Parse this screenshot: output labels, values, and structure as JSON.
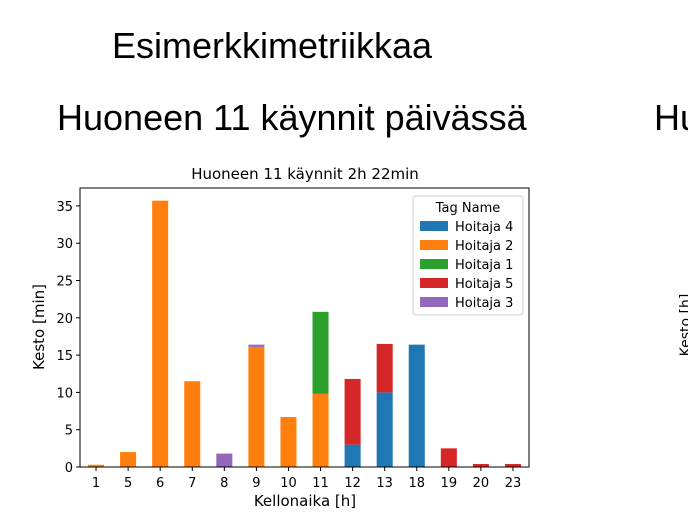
{
  "slide": {
    "title": "Esimerkkimetriikkaa",
    "subtitle": "Huoneen 11 käynnit päivässä",
    "next_panel_title": "Hu",
    "next_panel_ylabel": "Kesto [h]"
  },
  "chart_data": {
    "type": "stacked_bar",
    "title": "Huoneen 11 käynnit 2h 22min",
    "x_label": "Kellonaika [h]",
    "y_label": "Kesto [min]",
    "categories": [
      "1",
      "5",
      "6",
      "7",
      "8",
      "9",
      "10",
      "11",
      "12",
      "13",
      "18",
      "19",
      "20",
      "23"
    ],
    "series": [
      {
        "name": "Hoitaja 4",
        "color": "#1f77b4",
        "values": [
          null,
          null,
          null,
          null,
          null,
          null,
          null,
          null,
          3.0,
          10.0,
          16.4,
          null,
          null,
          null
        ]
      },
      {
        "name": "Hoitaja 2",
        "color": "#ff7f0e",
        "values": [
          0.3,
          2.0,
          35.7,
          11.5,
          null,
          16.1,
          6.7,
          9.8,
          null,
          null,
          null,
          null,
          null,
          null
        ]
      },
      {
        "name": "Hoitaja 1",
        "color": "#2ca02c",
        "values": [
          null,
          null,
          null,
          null,
          null,
          null,
          null,
          11.0,
          null,
          null,
          null,
          null,
          null,
          null
        ]
      },
      {
        "name": "Hoitaja 5",
        "color": "#d62728",
        "values": [
          null,
          null,
          null,
          null,
          null,
          null,
          null,
          null,
          8.8,
          6.5,
          null,
          2.5,
          0.4,
          0.4
        ]
      },
      {
        "name": "Hoitaja 3",
        "color": "#9467bd",
        "values": [
          null,
          null,
          null,
          null,
          1.8,
          0.3,
          null,
          null,
          null,
          null,
          null,
          null,
          null,
          null
        ]
      }
    ],
    "legend_title": "Tag Name",
    "legend_position": "upper right",
    "ylim": [
      0,
      37.4
    ],
    "yticks": [
      0,
      5,
      10,
      15,
      20,
      25,
      30,
      35
    ],
    "grid": false
  }
}
